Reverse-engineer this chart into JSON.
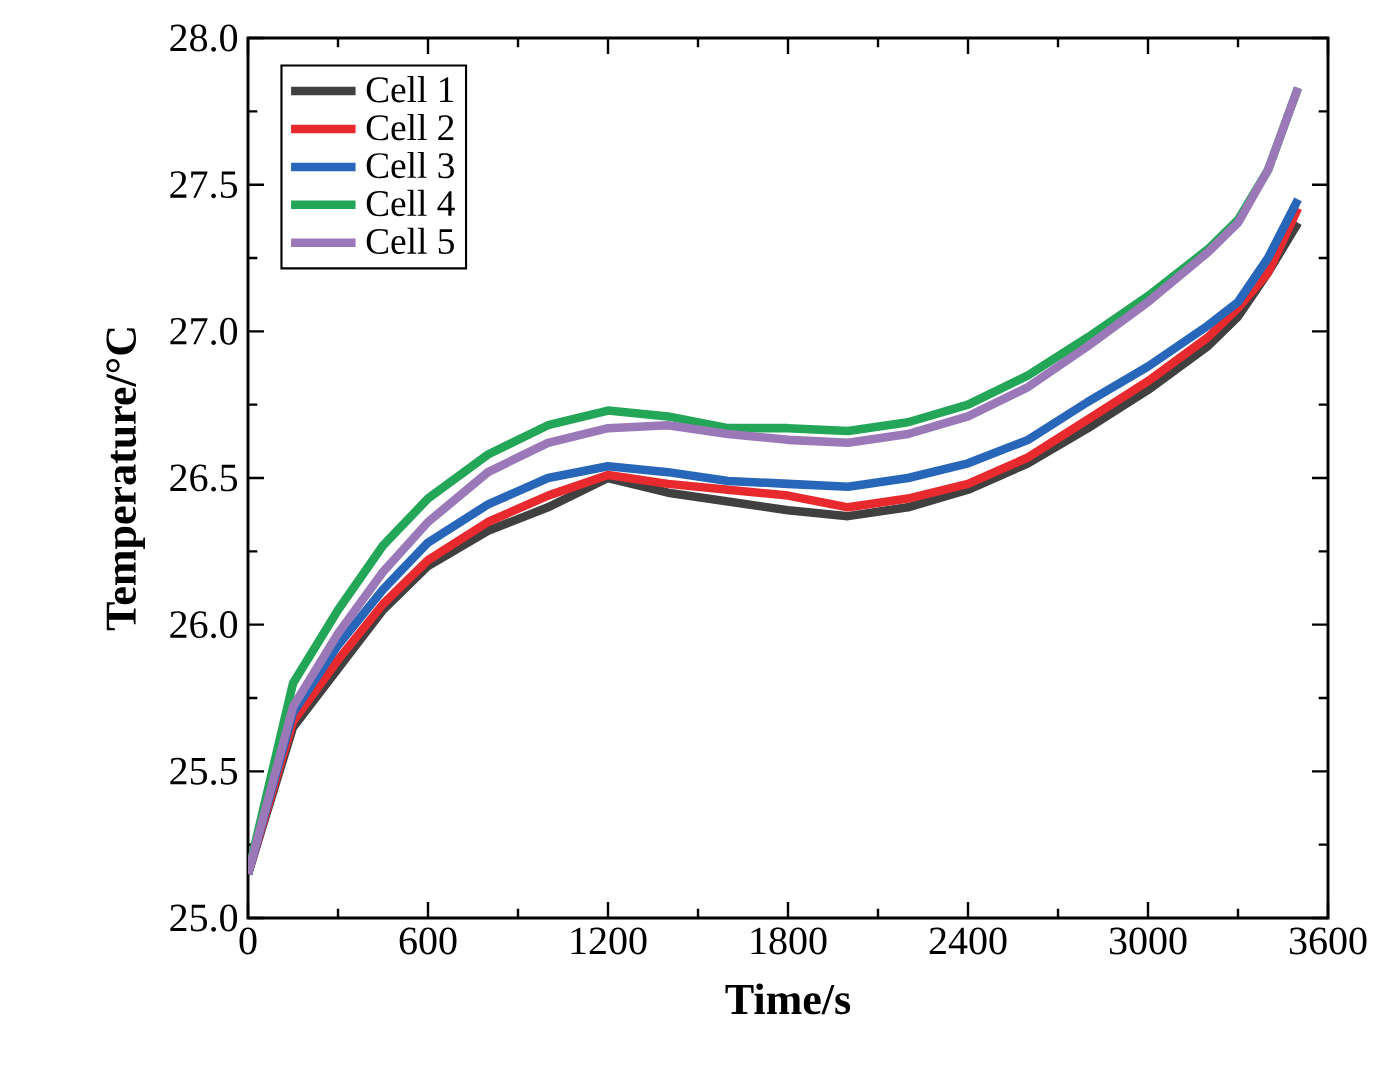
{
  "chart_data": {
    "type": "line",
    "xlabel": "Time/s",
    "ylabel": "Temperature/°C",
    "x": [
      0,
      150,
      300,
      450,
      600,
      800,
      1000,
      1200,
      1400,
      1600,
      1800,
      2000,
      2200,
      2400,
      2600,
      2800,
      3000,
      3200,
      3300,
      3400,
      3500
    ],
    "series": [
      {
        "name": "Cell 1",
        "color": "#404040",
        "values": [
          25.15,
          25.65,
          25.85,
          26.05,
          26.2,
          26.32,
          26.4,
          26.5,
          26.45,
          26.42,
          26.39,
          26.37,
          26.4,
          26.46,
          26.55,
          26.67,
          26.8,
          26.95,
          27.05,
          27.2,
          27.37
        ]
      },
      {
        "name": "Cell 2",
        "color": "#e8292e",
        "values": [
          25.15,
          25.67,
          25.88,
          26.07,
          26.22,
          26.35,
          26.44,
          26.51,
          26.48,
          26.46,
          26.44,
          26.4,
          26.43,
          26.48,
          26.57,
          26.7,
          26.83,
          26.98,
          27.08,
          27.2,
          27.42
        ]
      },
      {
        "name": "Cell 3",
        "color": "#2766b8",
        "values": [
          25.15,
          25.7,
          25.93,
          26.12,
          26.28,
          26.41,
          26.5,
          26.54,
          26.52,
          26.49,
          26.48,
          26.47,
          26.5,
          26.55,
          26.63,
          26.76,
          26.88,
          27.02,
          27.1,
          27.25,
          27.45
        ]
      },
      {
        "name": "Cell 4",
        "color": "#23a657",
        "values": [
          25.15,
          25.8,
          26.05,
          26.27,
          26.43,
          26.58,
          26.68,
          26.73,
          26.71,
          26.67,
          26.67,
          26.66,
          26.69,
          26.75,
          26.85,
          26.98,
          27.12,
          27.28,
          27.38,
          27.55,
          27.83
        ]
      },
      {
        "name": "Cell 5",
        "color": "#9b78b8",
        "values": [
          25.15,
          25.72,
          25.97,
          26.18,
          26.35,
          26.52,
          26.62,
          26.67,
          26.68,
          26.65,
          26.63,
          26.62,
          26.65,
          26.71,
          26.81,
          26.95,
          27.1,
          27.27,
          27.37,
          27.55,
          27.83
        ]
      }
    ],
    "xlim": [
      0,
      3600
    ],
    "xticks": [
      0,
      600,
      1200,
      1800,
      2400,
      3000,
      3600
    ],
    "ylim": [
      25,
      28
    ],
    "yticks": [
      {
        "value": 25,
        "label": "25.0"
      },
      {
        "value": 25.5,
        "label": "25.5"
      },
      {
        "value": 26,
        "label": "26.0"
      },
      {
        "value": 26.5,
        "label": "26.5"
      },
      {
        "value": 27,
        "label": "27.0"
      },
      {
        "value": 27.5,
        "label": "27.5"
      },
      {
        "value": 28,
        "label": "28.0"
      }
    ],
    "legend": "top left",
    "grid": false,
    "marker": "none",
    "line_style": "solid"
  }
}
